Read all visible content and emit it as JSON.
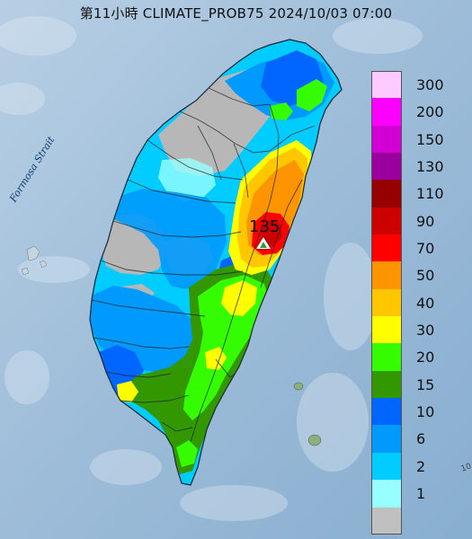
{
  "title": "第11小時  CLIMATE_PROB75 2024/10/03 07:00",
  "strait_label": "Formosa Strait",
  "peak_label": "135",
  "edge_label": "10",
  "legend": [
    {
      "label": "300",
      "color": "#ffcaff"
    },
    {
      "label": "200",
      "color": "#fc00fe"
    },
    {
      "label": "150",
      "color": "#d100d3"
    },
    {
      "label": "130",
      "color": "#9b009e"
    },
    {
      "label": "110",
      "color": "#970000"
    },
    {
      "label": "90",
      "color": "#cc0000"
    },
    {
      "label": "70",
      "color": "#fe0000"
    },
    {
      "label": "50",
      "color": "#fe9500"
    },
    {
      "label": "40",
      "color": "#ffc700"
    },
    {
      "label": "30",
      "color": "#fffe00"
    },
    {
      "label": "20",
      "color": "#35fc00"
    },
    {
      "label": "15",
      "color": "#339700"
    },
    {
      "label": "10",
      "color": "#0066ff"
    },
    {
      "label": "6",
      "color": "#009afe"
    },
    {
      "label": "2",
      "color": "#00ccff"
    },
    {
      "label": "1",
      "color": "#97ffff"
    },
    {
      "label": "",
      "color": "#c0c0c0"
    }
  ],
  "colors": {
    "sea": "#9dbedb",
    "gray_area": "#b6b6b6",
    "legend_gray": "#c0c0c0"
  }
}
